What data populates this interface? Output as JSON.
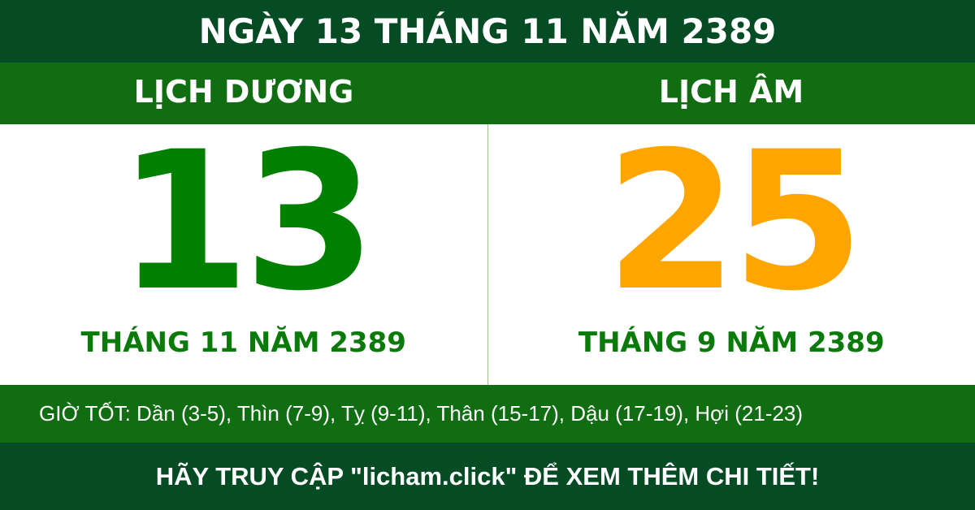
{
  "title": "NGÀY 13 THÁNG 11 NĂM 2389",
  "solar": {
    "label": "LỊCH DƯƠNG",
    "day": "13",
    "month_year": "THÁNG 11 NĂM 2389"
  },
  "lunar": {
    "label": "LỊCH ÂM",
    "day": "25",
    "month_year": "THÁNG 9 NĂM 2389"
  },
  "good_hours": "GIỜ TỐT: Dần (3-5), Thìn (7-9), Tỵ (9-11), Thân (15-17), Dậu (17-19), Hợi (21-23)",
  "footer": "HÃY TRUY CẬP \"licham.click\" ĐỂ XEM THÊM CHI TIẾT!",
  "colors": {
    "dark_green": "#054b23",
    "green": "#116d11",
    "solar_day": "#008000",
    "lunar_day": "#ffa500"
  }
}
